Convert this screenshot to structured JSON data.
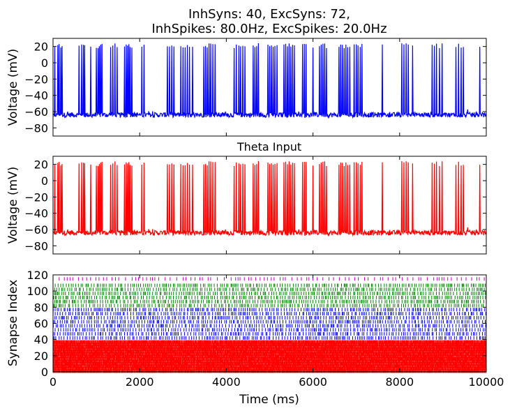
{
  "figure": {
    "title_line1": "InhSyns: 40, ExcSyns: 72,",
    "title_line2": "InhSpikes: 80.0Hz, ExcSpikes: 20.0Hz"
  },
  "chart_data": [
    {
      "type": "line",
      "title": "",
      "xlabel": "",
      "ylabel": "Voltage (mV)",
      "xlim": [
        0,
        10000
      ],
      "ylim": [
        -90,
        30
      ],
      "xticks": [
        0,
        2000,
        4000,
        6000,
        8000,
        10000
      ],
      "xtick_labels_visible": false,
      "yticks": [
        -80,
        -60,
        -40,
        -20,
        0,
        20
      ],
      "grid": false,
      "series": [
        {
          "color": "#0000ff",
          "baseline_mV": -64,
          "noise_mV": 3,
          "spike_peak_mV": 24,
          "spike_times_ms": [
            40,
            105,
            140,
            175,
            210,
            600,
            660,
            700,
            730,
            870,
            1000,
            1040,
            1070,
            1100,
            1130,
            1330,
            1380,
            1430,
            1480,
            1650,
            1690,
            1720,
            1750,
            1780,
            1820,
            2050,
            2100,
            2640,
            2690,
            2740,
            2790,
            2950,
            3000,
            3050,
            3100,
            3150,
            3220,
            3480,
            3520,
            3560,
            3600,
            3640,
            3690,
            3740,
            4180,
            4230,
            4290,
            4330,
            4380,
            4430,
            4620,
            4660,
            4700,
            4740,
            4960,
            5000,
            5040,
            5080,
            5120,
            5170,
            5330,
            5370,
            5410,
            5450,
            5490,
            5530,
            5570,
            5760,
            5800,
            5840,
            6000,
            6150,
            6190,
            6230,
            6270,
            6310,
            6600,
            6640,
            6680,
            6720,
            6760,
            6800,
            6850,
            6950,
            7000,
            7040,
            7090,
            7130,
            7600,
            8050,
            8100,
            8150,
            8200,
            8300,
            8750,
            8800,
            8850,
            8920,
            8980,
            9300,
            9360,
            9420,
            9470,
            9850
          ]
        }
      ]
    },
    {
      "type": "line",
      "title": "Theta Input",
      "xlabel": "",
      "ylabel": "Voltage (mV)",
      "xlim": [
        0,
        10000
      ],
      "ylim": [
        -90,
        30
      ],
      "xticks": [
        0,
        2000,
        4000,
        6000,
        8000,
        10000
      ],
      "xtick_labels_visible": false,
      "yticks": [
        -80,
        -60,
        -40,
        -20,
        0,
        20
      ],
      "grid": false,
      "series": [
        {
          "color": "#ff0000",
          "baseline_mV": -64,
          "noise_mV": 3,
          "spike_peak_mV": 24,
          "spike_times_ms": [
            40,
            105,
            140,
            175,
            210,
            600,
            660,
            700,
            730,
            870,
            1000,
            1040,
            1070,
            1100,
            1130,
            1330,
            1380,
            1430,
            1480,
            1650,
            1690,
            1720,
            1750,
            1780,
            1820,
            2050,
            2100,
            2640,
            2690,
            2740,
            2790,
            2950,
            3000,
            3050,
            3100,
            3150,
            3220,
            3480,
            3520,
            3560,
            3600,
            3640,
            3690,
            3740,
            4180,
            4230,
            4290,
            4330,
            4380,
            4430,
            4620,
            4660,
            4700,
            4740,
            4960,
            5000,
            5040,
            5080,
            5120,
            5170,
            5330,
            5370,
            5410,
            5450,
            5490,
            5530,
            5570,
            5760,
            5800,
            5840,
            6000,
            6150,
            6190,
            6230,
            6270,
            6310,
            6600,
            6640,
            6680,
            6720,
            6760,
            6800,
            6850,
            6950,
            7000,
            7040,
            7090,
            7130,
            7600,
            8050,
            8100,
            8150,
            8200,
            8300,
            8750,
            8800,
            8850,
            8920,
            8980,
            9300,
            9360,
            9420,
            9470,
            9850
          ]
        }
      ]
    },
    {
      "type": "scatter",
      "title": "",
      "xlabel": "Time (ms)",
      "ylabel": "Synapse Index",
      "xlim": [
        0,
        10000
      ],
      "ylim": [
        0,
        120
      ],
      "xticks": [
        0,
        2000,
        4000,
        6000,
        8000,
        10000
      ],
      "yticks": [
        0,
        20,
        40,
        60,
        80,
        100,
        120
      ],
      "grid": false,
      "marker": "|",
      "series": [
        {
          "color": "#ff0000",
          "index_range": [
            0,
            39
          ],
          "rows_drawn": [
            1,
            4,
            7,
            10,
            13,
            16,
            19,
            22,
            25,
            28,
            31,
            34,
            37
          ],
          "rate_hz": 80.0
        },
        {
          "color": "#0000ff",
          "index_range": [
            40,
            79
          ],
          "rows_drawn": [
            42,
            47,
            52,
            57,
            62,
            67,
            72,
            77
          ],
          "rate_hz": 20.0
        },
        {
          "color": "#008000",
          "index_range": [
            80,
            111
          ],
          "rows_drawn": [
            82,
            87,
            92,
            97,
            102,
            107
          ],
          "rate_hz": 20.0
        },
        {
          "color": "#bf00bf",
          "index_range": [
            112,
            119
          ],
          "rows_drawn": [
            115
          ],
          "rate_hz": 10.0
        }
      ]
    }
  ]
}
